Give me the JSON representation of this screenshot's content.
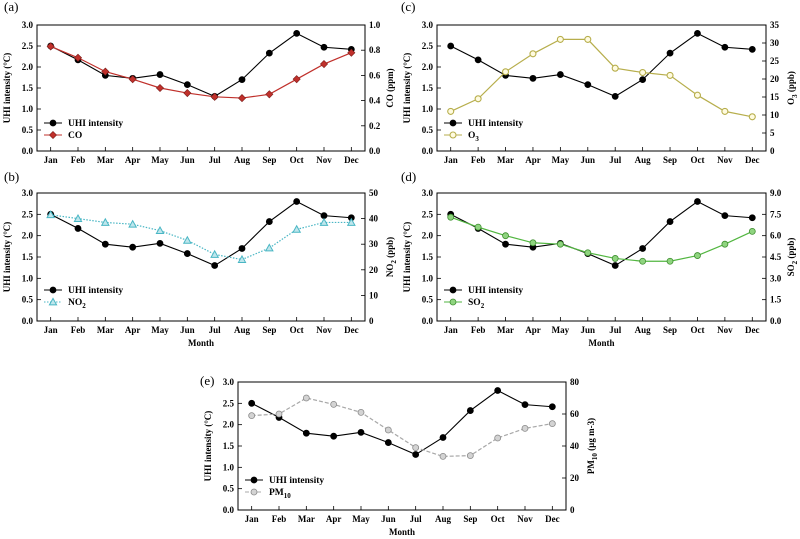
{
  "chart_data": [
    {
      "type": "line",
      "panel_label": "(a)",
      "categories": [
        "Jan",
        "Feb",
        "Mar",
        "Apr",
        "May",
        "Jun",
        "Jul",
        "Aug",
        "Sep",
        "Oct",
        "Nov",
        "Dec"
      ],
      "xlabel": "",
      "ylabel_left": "UHI intensity (°C)",
      "ylabel_right": "CO (ppm)",
      "ylim_left": [
        0.0,
        3.0
      ],
      "ylim_right": [
        0.0,
        1.0
      ],
      "yticks_left": [
        "0.0",
        "0.5",
        "1.0",
        "1.5",
        "2.0",
        "2.5",
        "3.0"
      ],
      "yticks_right": [
        "0.0",
        "0.2",
        "0.4",
        "0.6",
        "0.8",
        "1.0"
      ],
      "legend": [
        "UHI intensity",
        "CO"
      ],
      "series": [
        {
          "name": "UHI intensity",
          "axis": "left",
          "color": "#000000",
          "marker": "circle",
          "style": "solid",
          "values": [
            2.5,
            2.17,
            1.8,
            1.73,
            1.82,
            1.58,
            1.3,
            1.7,
            2.33,
            2.8,
            2.47,
            2.42
          ]
        },
        {
          "name": "CO",
          "axis": "right",
          "color": "#c0302b",
          "marker": "diamond",
          "style": "solid",
          "values": [
            0.83,
            0.74,
            0.63,
            0.57,
            0.5,
            0.46,
            0.43,
            0.42,
            0.45,
            0.57,
            0.69,
            0.78
          ]
        }
      ]
    },
    {
      "type": "line",
      "panel_label": "(b)",
      "categories": [
        "Jan",
        "Feb",
        "Mar",
        "Apr",
        "May",
        "Jun",
        "Jul",
        "Aug",
        "Sep",
        "Oct",
        "Nov",
        "Dec"
      ],
      "xlabel": "Month",
      "ylabel_left": "UHI intensity (°C)",
      "ylabel_right": "NO2 (ppb)",
      "ylim_left": [
        0.0,
        3.0
      ],
      "ylim_right": [
        0,
        50
      ],
      "yticks_left": [
        "0.0",
        "0.5",
        "1.0",
        "1.5",
        "2.0",
        "2.5",
        "3.0"
      ],
      "yticks_right": [
        "0",
        "10",
        "20",
        "30",
        "40",
        "50"
      ],
      "legend": [
        "UHI intensity",
        "NO2"
      ],
      "series": [
        {
          "name": "UHI intensity",
          "axis": "left",
          "color": "#000000",
          "marker": "circle",
          "style": "solid",
          "values": [
            2.5,
            2.17,
            1.8,
            1.73,
            1.82,
            1.58,
            1.3,
            1.7,
            2.33,
            2.8,
            2.47,
            2.42
          ]
        },
        {
          "name": "NO2",
          "axis": "right",
          "color": "#49b6c4",
          "marker": "triangle",
          "style": "dotted",
          "values": [
            41.5,
            40,
            38.5,
            37.8,
            35.3,
            31.5,
            26,
            24,
            28.5,
            35.8,
            38.5,
            38.5
          ]
        }
      ]
    },
    {
      "type": "line",
      "panel_label": "(c)",
      "categories": [
        "Jan",
        "Feb",
        "Mar",
        "Apr",
        "May",
        "Jun",
        "Jul",
        "Aug",
        "Sep",
        "Oct",
        "Nov",
        "Dec"
      ],
      "xlabel": "",
      "ylabel_left": "UHI intensity (°C)",
      "ylabel_right": "O3 (ppb)",
      "ylim_left": [
        0.0,
        3.0
      ],
      "ylim_right": [
        0,
        35
      ],
      "yticks_left": [
        "0.0",
        "0.5",
        "1.0",
        "1.5",
        "2.0",
        "2.5",
        "3.0"
      ],
      "yticks_right": [
        "0",
        "5",
        "10",
        "15",
        "20",
        "25",
        "30",
        "35"
      ],
      "legend": [
        "UHI intensity",
        "O3"
      ],
      "series": [
        {
          "name": "UHI intensity",
          "axis": "left",
          "color": "#000000",
          "marker": "circle",
          "style": "solid",
          "values": [
            2.5,
            2.17,
            1.8,
            1.73,
            1.82,
            1.58,
            1.3,
            1.7,
            2.33,
            2.8,
            2.47,
            2.42
          ]
        },
        {
          "name": "O3",
          "axis": "right",
          "color": "#b7ae4c",
          "marker": "circle-open",
          "style": "solid",
          "values": [
            11,
            14.5,
            22,
            27,
            31,
            31,
            23,
            21.8,
            21,
            15.5,
            11,
            9.5
          ]
        }
      ]
    },
    {
      "type": "line",
      "panel_label": "(d)",
      "categories": [
        "Jan",
        "Feb",
        "Mar",
        "Apr",
        "May",
        "Jun",
        "Jul",
        "Aug",
        "Sep",
        "Oct",
        "Nov",
        "Dec"
      ],
      "xlabel": "Month",
      "ylabel_left": "UHI intensity (°C)",
      "ylabel_right": "SO2 (ppb)",
      "ylim_left": [
        0.0,
        3.0
      ],
      "ylim_right": [
        0.0,
        9.0
      ],
      "yticks_left": [
        "0.0",
        "0.5",
        "1.0",
        "1.5",
        "2.0",
        "2.5",
        "3.0"
      ],
      "yticks_right": [
        "0.0",
        "1.5",
        "3.0",
        "4.5",
        "6.0",
        "7.5",
        "9.0"
      ],
      "legend": [
        "UHI intensity",
        "SO2"
      ],
      "series": [
        {
          "name": "UHI intensity",
          "axis": "left",
          "color": "#000000",
          "marker": "circle",
          "style": "solid",
          "values": [
            2.5,
            2.17,
            1.8,
            1.73,
            1.82,
            1.58,
            1.3,
            1.7,
            2.33,
            2.8,
            2.47,
            2.42
          ]
        },
        {
          "name": "SO2",
          "axis": "right",
          "color": "#52b640",
          "marker": "circle",
          "style": "solid",
          "values": [
            7.3,
            6.6,
            6.0,
            5.5,
            5.4,
            4.8,
            4.4,
            4.2,
            4.2,
            4.6,
            5.4,
            6.3
          ]
        }
      ]
    },
    {
      "type": "line",
      "panel_label": "(e)",
      "categories": [
        "Jan",
        "Feb",
        "Mar",
        "Apr",
        "May",
        "Jun",
        "Jul",
        "Aug",
        "Sep",
        "Oct",
        "Nov",
        "Dec"
      ],
      "xlabel": "Month",
      "ylabel_left": "UHI intensity (°C)",
      "ylabel_right": "PM10 (µg m-3)",
      "ylim_left": [
        0.0,
        3.0
      ],
      "ylim_right": [
        0,
        80
      ],
      "yticks_left": [
        "0.0",
        "0.5",
        "1.0",
        "1.5",
        "2.0",
        "2.5",
        "3.0"
      ],
      "yticks_right": [
        "0",
        "20",
        "40",
        "60",
        "80"
      ],
      "legend": [
        "UHI intensity",
        "PM10"
      ],
      "series": [
        {
          "name": "UHI intensity",
          "axis": "left",
          "color": "#000000",
          "marker": "circle",
          "style": "solid",
          "values": [
            2.5,
            2.17,
            1.8,
            1.73,
            1.82,
            1.58,
            1.3,
            1.7,
            2.33,
            2.8,
            2.47,
            2.42
          ]
        },
        {
          "name": "PM10",
          "axis": "right",
          "color": "#9a9a9a",
          "marker": "circle",
          "style": "dashed",
          "values": [
            59,
            60,
            70,
            66,
            61,
            50,
            39,
            33.5,
            34,
            45,
            51,
            54
          ]
        }
      ]
    }
  ]
}
